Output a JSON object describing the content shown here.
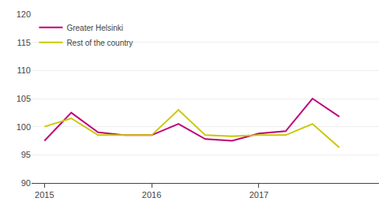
{
  "chart_data": {
    "type": "line",
    "x": [
      2015.0,
      2015.25,
      2015.5,
      2015.75,
      2016.0,
      2016.25,
      2016.5,
      2016.75,
      2017.0,
      2017.25,
      2017.5,
      2017.75
    ],
    "series": [
      {
        "name": "Greater Helsinki",
        "color": "#c0007a",
        "values": [
          97.5,
          102.5,
          99.0,
          98.5,
          98.5,
          100.5,
          97.8,
          97.5,
          98.8,
          99.2,
          105.0,
          101.8
        ]
      },
      {
        "name": "Rest of the country",
        "color": "#c8c800",
        "values": [
          100.0,
          101.5,
          98.5,
          98.5,
          98.5,
          103.0,
          98.5,
          98.3,
          98.5,
          98.5,
          100.5,
          96.3
        ]
      }
    ],
    "xlim": [
      2014.88,
      2018.12
    ],
    "xticks": [
      2015,
      2016,
      2017
    ],
    "ylim": [
      90,
      120
    ],
    "yticks": [
      90,
      95,
      100,
      105,
      110,
      115,
      120
    ],
    "grid": true,
    "legend": "upper left"
  }
}
